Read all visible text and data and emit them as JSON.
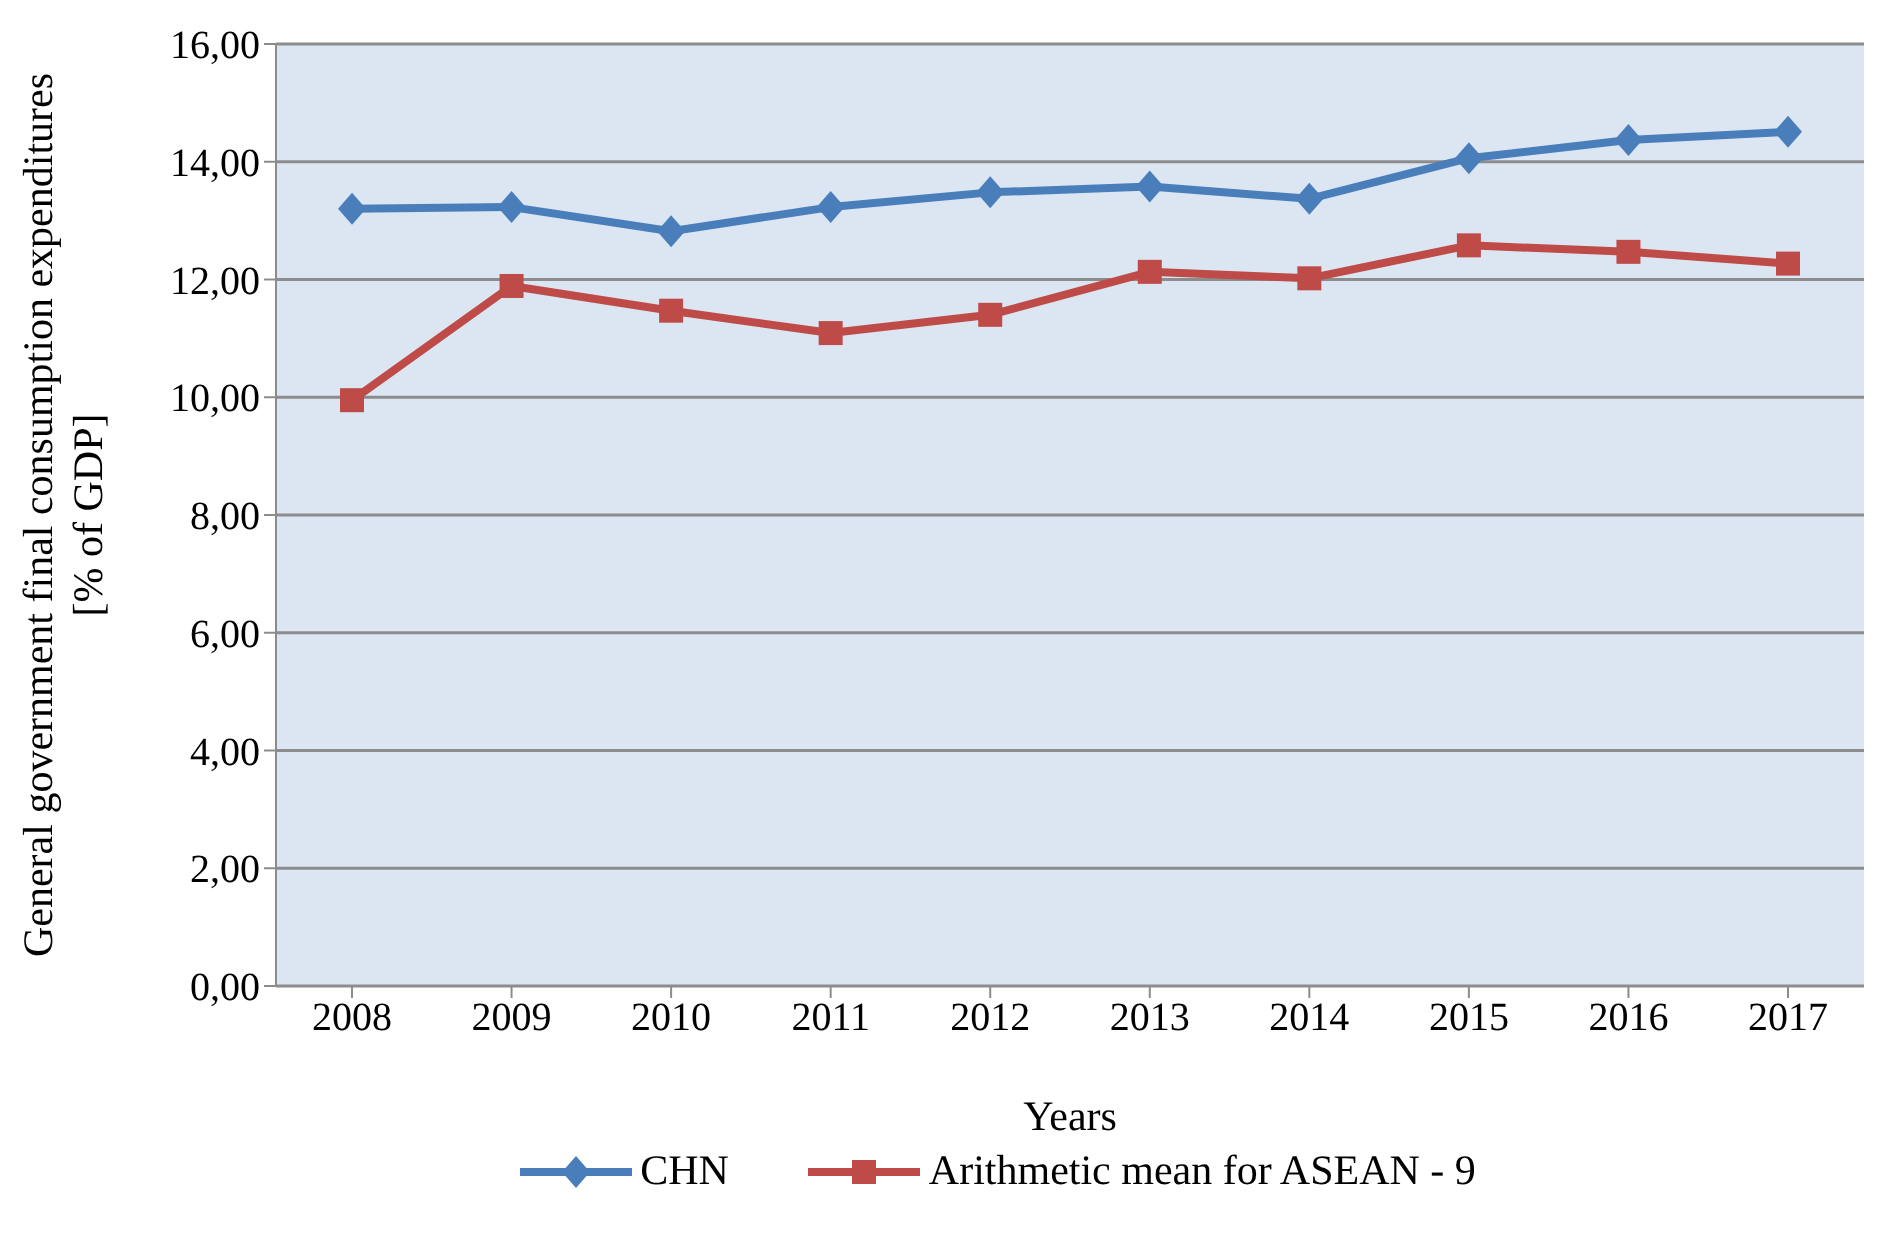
{
  "chart_data": {
    "type": "line",
    "xlabel": "Years",
    "ylabel": "General government final consumption expenditures\n[% of GDP]",
    "categories": [
      "2008",
      "2009",
      "2010",
      "2011",
      "2012",
      "2013",
      "2014",
      "2015",
      "2016",
      "2017"
    ],
    "series": [
      {
        "name": "CHN",
        "color": "#4a7ebb",
        "marker": "diamond",
        "values": [
          13.2,
          13.23,
          12.82,
          13.23,
          13.48,
          13.58,
          13.37,
          14.06,
          14.37,
          14.51
        ]
      },
      {
        "name": "Arithmetic mean for ASEAN - 9",
        "color": "#be4b48",
        "marker": "square",
        "values": [
          9.95,
          11.89,
          11.47,
          11.09,
          11.4,
          12.13,
          12.02,
          12.58,
          12.47,
          12.27
        ]
      }
    ],
    "ylim": [
      0,
      16
    ],
    "yticks": [
      {
        "value": 0,
        "label": "0,00"
      },
      {
        "value": 2,
        "label": "2,00"
      },
      {
        "value": 4,
        "label": "4,00"
      },
      {
        "value": 6,
        "label": "6,00"
      },
      {
        "value": 8,
        "label": "8,00"
      },
      {
        "value": 10,
        "label": "10,00"
      },
      {
        "value": 12,
        "label": "12,00"
      },
      {
        "value": 14,
        "label": "14,00"
      },
      {
        "value": 16,
        "label": "16,00"
      }
    ],
    "grid": "y",
    "legend": "bottom",
    "line_style": "solid"
  }
}
